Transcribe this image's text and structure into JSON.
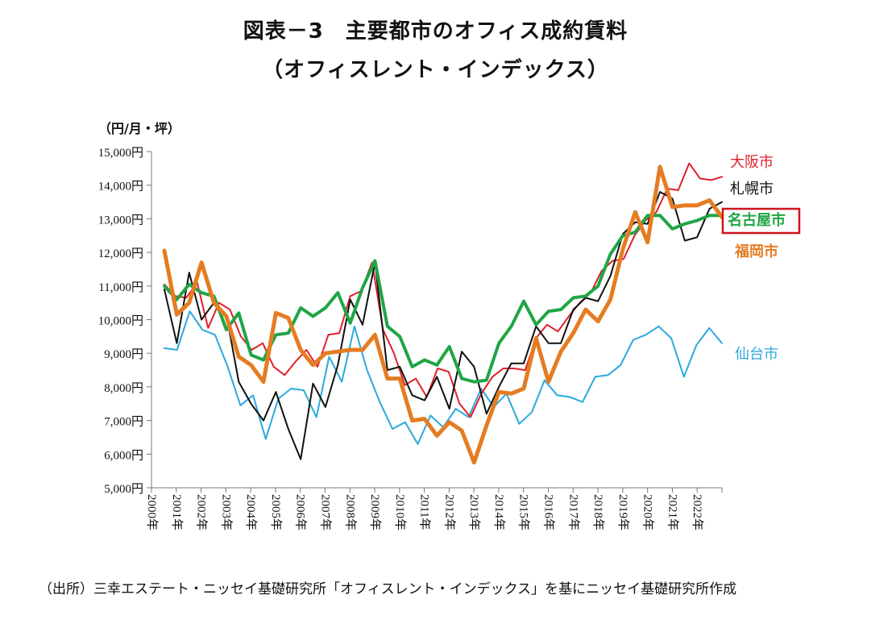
{
  "title": "図表－3　主要都市のオフィス成約賃料",
  "subtitle": "（オフィスレント・インデックス）",
  "source": "（出所）三幸エステート・ニッセイ基礎研究所「オフィスレント・インデックス」を基にニッセイ基礎研究所作成",
  "chart_data": {
    "type": "line",
    "unit_label": "（円/月・坪）",
    "ylim": [
      5000,
      15000
    ],
    "y_ticks": [
      5000,
      6000,
      7000,
      8000,
      9000,
      10000,
      11000,
      12000,
      13000,
      14000,
      15000
    ],
    "y_tick_labels": [
      "5,000円",
      "6,000円",
      "7,000円",
      "8,000円",
      "9,000円",
      "10,000円",
      "11,000円",
      "12,000円",
      "13,000円",
      "14,000円",
      "15,000円"
    ],
    "x_tick_labels": [
      "2000年",
      "2001年",
      "2002年",
      "2003年",
      "2004年",
      "2005年",
      "2006年",
      "2007年",
      "2008年",
      "2009年",
      "2010年",
      "2011年",
      "2012年",
      "2013年",
      "2014年",
      "2015年",
      "2016年",
      "2017年",
      "2018年",
      "2019年",
      "2020年",
      "2021年",
      "2022年"
    ],
    "x_tick_quarters": [
      0,
      4,
      8,
      12,
      16,
      20,
      24,
      28,
      32,
      36,
      40,
      44,
      48,
      52,
      56,
      60,
      64,
      68,
      72,
      76,
      80,
      84,
      88
    ],
    "quarters_total": 92,
    "grid": false,
    "series": [
      {
        "name": "大阪市",
        "color": "#e0202a",
        "width": 2,
        "label_weight": "normal",
        "values": [
          11050,
          10700,
          10650,
          11100,
          9750,
          10500,
          10300,
          9500,
          9100,
          9300,
          8600,
          8350,
          8750,
          9100,
          8600,
          9550,
          9600,
          10700,
          10850,
          11700,
          9700,
          9000,
          8050,
          8250,
          7700,
          8550,
          8450,
          7500,
          7100,
          7800,
          8300,
          8550,
          8550,
          8500,
          9450,
          9850,
          9650,
          10100,
          10500,
          10800,
          11450,
          11750,
          11800,
          12500,
          12950,
          13200,
          13900,
          13850,
          14650,
          14200,
          14150,
          14250
        ]
      },
      {
        "name": "札幌市",
        "color": "#111111",
        "width": 2,
        "label_weight": "normal",
        "values": [
          10900,
          9300,
          11400,
          10000,
          10500,
          10150,
          8150,
          7500,
          7000,
          7850,
          6750,
          5850,
          8100,
          7400,
          8650,
          10600,
          9850,
          11700,
          8500,
          8600,
          7750,
          7600,
          8300,
          7350,
          9050,
          8600,
          7200,
          8000,
          8700,
          8700,
          9800,
          9300,
          9300,
          10300,
          10650,
          10550,
          11300,
          12550,
          12900,
          12850,
          13800,
          13600,
          12350,
          12450,
          13300,
          13500
        ]
      },
      {
        "name": "仙台市",
        "color": "#2aa9de",
        "width": 2,
        "label_weight": "normal",
        "values": [
          9150,
          9100,
          10250,
          9700,
          9550,
          8600,
          7450,
          7750,
          6450,
          7650,
          7950,
          7900,
          7100,
          8900,
          8150,
          9800,
          8500,
          7550,
          6750,
          6950,
          6300,
          7150,
          6800,
          7350,
          7100,
          7950,
          7400,
          7800,
          6900,
          7250,
          8200,
          7750,
          7700,
          7550,
          8300,
          8350,
          8650,
          9400,
          9550,
          9800,
          9450,
          8300,
          9250,
          9750,
          9300
        ]
      },
      {
        "name": "名古屋市",
        "color": "#1fa545",
        "width": 4,
        "label_weight": "bold",
        "boxed": true,
        "values": [
          11000,
          10600,
          11050,
          10800,
          10700,
          9700,
          10200,
          8950,
          8800,
          9550,
          9600,
          10350,
          10100,
          10350,
          10800,
          9900,
          10950,
          11750,
          9800,
          9500,
          8600,
          8800,
          8650,
          9200,
          8250,
          8150,
          8200,
          9300,
          9800,
          10550,
          9850,
          10250,
          10300,
          10650,
          10700,
          11000,
          11950,
          12500,
          12600,
          13100,
          13100,
          12700,
          12850,
          12950,
          13100,
          13100
        ]
      },
      {
        "name": "福岡市",
        "color": "#e57c22",
        "width": 5,
        "label_weight": "bold",
        "values": [
          12050,
          10150,
          10500,
          11700,
          10500,
          10100,
          8900,
          8650,
          8150,
          10200,
          10050,
          9100,
          8650,
          9000,
          9050,
          9100,
          9100,
          9550,
          8250,
          8250,
          7000,
          7050,
          6550,
          6950,
          6700,
          5750,
          6850,
          7850,
          7800,
          7950,
          9450,
          8150,
          9050,
          9600,
          10300,
          9950,
          10600,
          12100,
          13200,
          12300,
          14550,
          13350,
          13400,
          13400,
          13550,
          13050
        ]
      }
    ]
  }
}
